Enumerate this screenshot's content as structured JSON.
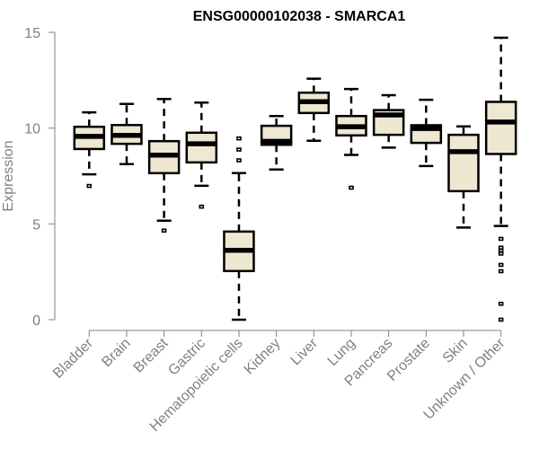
{
  "chart_data": {
    "type": "boxplot",
    "title": "ENSG00000102038 - SMARCA1",
    "xlabel": "",
    "ylabel": "Expression",
    "ylim": [
      0,
      15
    ],
    "yticks": [
      0,
      5,
      10,
      15
    ],
    "grid": false,
    "legend": "none",
    "colors": {
      "box_fill": "#EEE8D2",
      "box_stroke": "#000000",
      "axis": "#808080",
      "title": "#000000"
    },
    "categories": [
      "Bladder",
      "Brain",
      "Breast",
      "Gastric",
      "Hematopoietic cells",
      "Kidney",
      "Liver",
      "Lung",
      "Pancreas",
      "Prostate",
      "Skin",
      "Unknown / Other"
    ],
    "boxes": [
      {
        "label": "Bladder",
        "whisker_low": 7.59,
        "q1": 8.91,
        "median": 9.57,
        "q3": 10.07,
        "whisker_high": 10.82,
        "outliers": [
          6.98
        ]
      },
      {
        "label": "Brain",
        "whisker_low": 8.12,
        "q1": 9.18,
        "median": 9.62,
        "q3": 10.16,
        "whisker_high": 11.26,
        "outliers": []
      },
      {
        "label": "Breast",
        "whisker_low": 5.17,
        "q1": 7.65,
        "median": 8.59,
        "q3": 9.32,
        "whisker_high": 11.52,
        "outliers": [
          4.65
        ]
      },
      {
        "label": "Gastric",
        "whisker_low": 6.99,
        "q1": 8.21,
        "median": 9.18,
        "q3": 9.76,
        "whisker_high": 11.33,
        "outliers": [
          5.9
        ]
      },
      {
        "label": "Hematopoietic cells",
        "whisker_low": 0.0,
        "q1": 2.54,
        "median": 3.62,
        "q3": 4.6,
        "whisker_high": 7.65,
        "outliers": [
          9.46,
          8.88,
          8.32
        ]
      },
      {
        "label": "Kidney",
        "whisker_low": 7.84,
        "q1": 9.13,
        "median": 9.31,
        "q3": 10.12,
        "whisker_high": 10.63,
        "outliers": []
      },
      {
        "label": "Liver",
        "whisker_low": 9.34,
        "q1": 10.79,
        "median": 11.38,
        "q3": 11.85,
        "whisker_high": 12.58,
        "outliers": []
      },
      {
        "label": "Lung",
        "whisker_low": 8.6,
        "q1": 9.62,
        "median": 10.07,
        "q3": 10.63,
        "whisker_high": 12.04,
        "outliers": [
          6.89
        ]
      },
      {
        "label": "Pancreas",
        "whisker_low": 8.98,
        "q1": 9.65,
        "median": 10.69,
        "q3": 10.94,
        "whisker_high": 11.72,
        "outliers": []
      },
      {
        "label": "Prostate",
        "whisker_low": 8.02,
        "q1": 9.23,
        "median": 9.98,
        "q3": 10.15,
        "whisker_high": 11.48,
        "outliers": []
      },
      {
        "label": "Skin",
        "whisker_low": 4.81,
        "q1": 6.71,
        "median": 8.77,
        "q3": 9.65,
        "whisker_high": 10.09,
        "outliers": []
      },
      {
        "label": "Unknown / Other",
        "whisker_low": 4.89,
        "q1": 8.65,
        "median": 10.32,
        "q3": 11.37,
        "whisker_high": 14.72,
        "outliers": [
          4.22,
          3.76,
          3.61,
          3.45,
          2.86,
          2.53,
          0.83,
          0.0
        ]
      }
    ]
  }
}
